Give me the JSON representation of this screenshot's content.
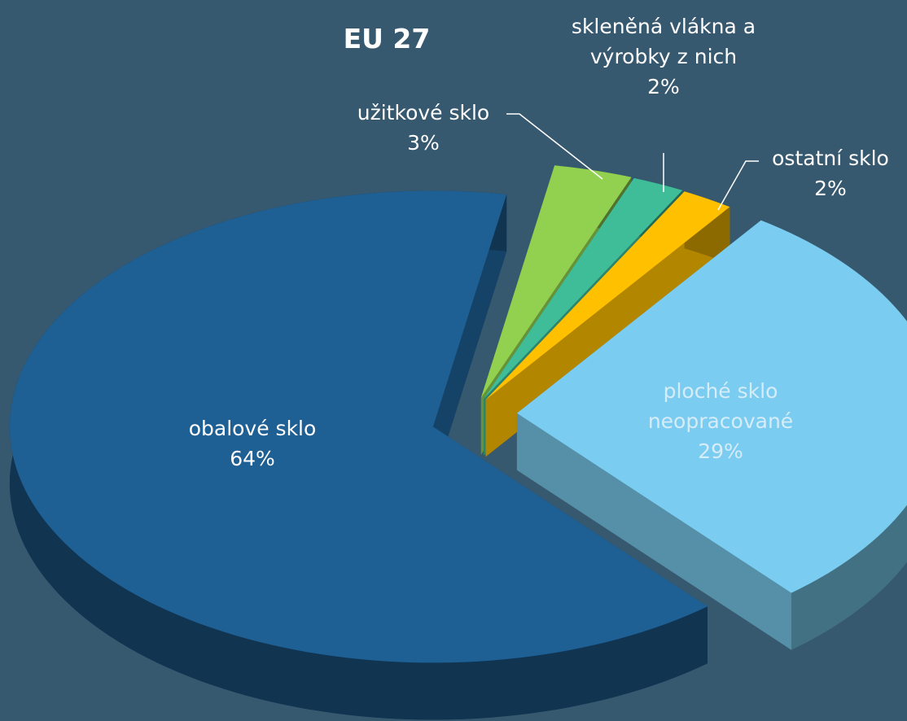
{
  "chart_data": {
    "type": "pie",
    "title": "EU 27",
    "categories": [
      "užitkové sklo",
      "skleněná vlákna a výrobky z nich",
      "ostatní sklo",
      "ploché sklo neopracované",
      "obalové sklo"
    ],
    "values": [
      3,
      2,
      2,
      29,
      64
    ],
    "value_labels": [
      "3%",
      "2%",
      "2%",
      "29%",
      "64%"
    ],
    "colors": [
      "#92d050",
      "#3fbd99",
      "#ffc000",
      "#7acdf0",
      "#1e5f94"
    ]
  }
}
